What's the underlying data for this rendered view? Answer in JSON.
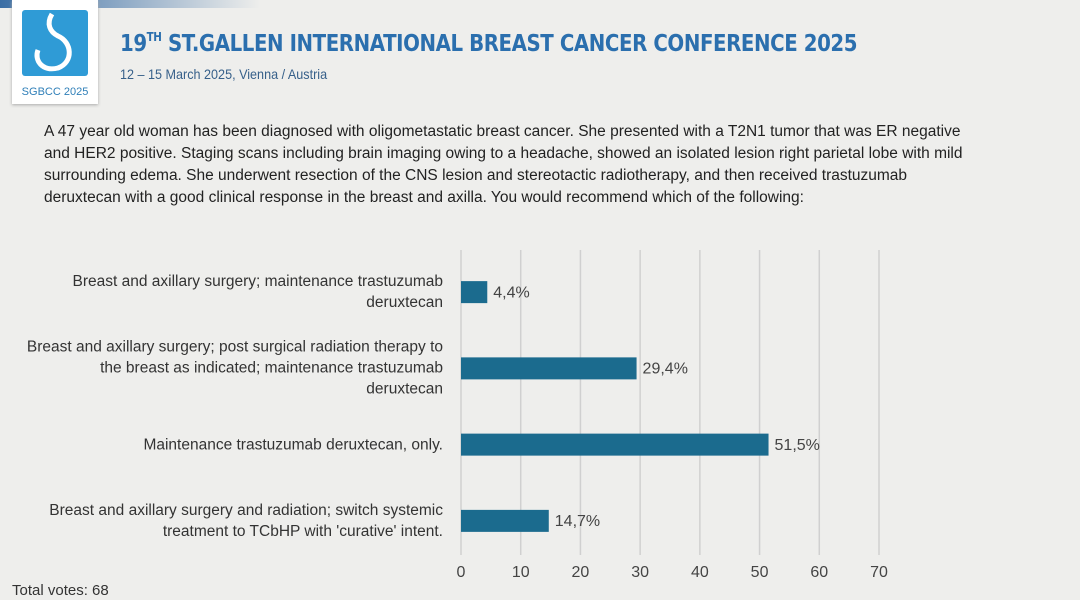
{
  "header": {
    "logo_text": "SGBCC 2025",
    "title_number": "19",
    "title_ordinal": "TH",
    "title_rest": "ST.GALLEN INTERNATIONAL BREAST CANCER CONFERENCE 2025",
    "subtitle": "12 – 15 March 2025, Vienna / Austria"
  },
  "question": "A 47 year old woman has been diagnosed with oligometastatic breast cancer.  She presented with a T2N1 tumor that was ER negative and HER2 positive.  Staging scans including brain imaging owing to a headache, showed an isolated lesion right parietal lobe with mild surrounding edema.  She underwent resection of the CNS lesion and stereotactic radiotherapy, and then received trastuzumab deruxtecan with a good clinical response in the breast and axilla.  You would recommend which of the following:",
  "chart_data": {
    "type": "barh",
    "categories": [
      "Breast and axillary surgery; maintenance trastuzumab deruxtecan",
      "Breast and axillary surgery; post surgical radiation therapy to the breast as indicated; maintenance trastuzumab deruxtecan",
      "Maintenance trastuzumab deruxtecan, only.",
      "Breast and axillary surgery and radiation; switch systemic treatment to TCbHP with 'curative' intent."
    ],
    "values": [
      4.4,
      29.4,
      51.5,
      14.7
    ],
    "value_labels": [
      "4,4%",
      "29,4%",
      "51,5%",
      "14,7%"
    ],
    "color": "#1b6b8e",
    "xlim": [
      0,
      70
    ],
    "xticks": [
      0,
      10,
      20,
      30,
      40,
      50,
      60,
      70
    ],
    "grid": true
  },
  "footer": "Total votes: 68"
}
